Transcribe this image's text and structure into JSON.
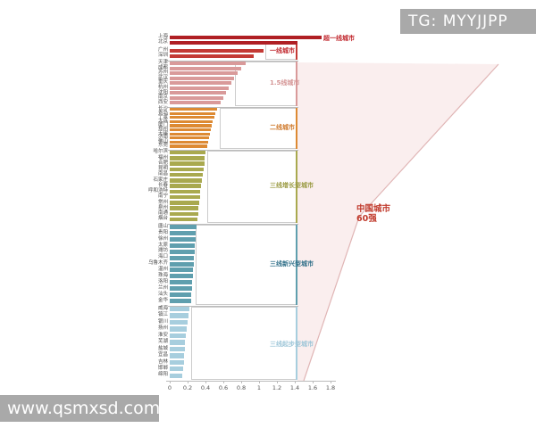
{
  "watermarks": {
    "top_right": "TG: MYYJJPP",
    "bottom_left": "www.qsmxsd.com"
  },
  "annotation": {
    "line1": "中国城市",
    "line2": "60强",
    "color": "#c0392b"
  },
  "chart_data": {
    "type": "bar",
    "orientation": "horizontal",
    "title": "中国城市60强",
    "xlabel": "",
    "ylabel": "",
    "xlim": [
      0,
      1.8
    ],
    "x_ticks": [
      "0",
      "0.2",
      "0.4",
      "0.6",
      "0.8",
      "1",
      "1.2",
      "1.4",
      "1.6",
      "1.8"
    ],
    "grid": false,
    "legend_position": "none",
    "tiers": [
      {
        "label": "超一线城市",
        "color": "#b01f24",
        "label_color": "#c0262c",
        "cities": [
          {
            "name": "上海",
            "value": 1.7
          },
          {
            "name": "北京",
            "value": 1.43
          }
        ]
      },
      {
        "label": "一线城市",
        "color": "#c43a35",
        "label_color": "#c0262c",
        "cities": [
          {
            "name": "广州",
            "value": 1.05
          },
          {
            "name": "深圳",
            "value": 0.94
          }
        ]
      },
      {
        "label": "1.5线城市",
        "color": "#d99a9a",
        "label_color": "#d49494",
        "cities": [
          {
            "name": "天津",
            "value": 0.85
          },
          {
            "name": "成都",
            "value": 0.8
          },
          {
            "name": "苏州",
            "value": 0.76
          },
          {
            "name": "武汉",
            "value": 0.72
          },
          {
            "name": "重庆",
            "value": 0.69
          },
          {
            "name": "杭州",
            "value": 0.66
          },
          {
            "name": "沈阳",
            "value": 0.63
          },
          {
            "name": "南京",
            "value": 0.6
          },
          {
            "name": "西安",
            "value": 0.57
          }
        ]
      },
      {
        "label": "二线城市",
        "color": "#dd8a33",
        "label_color": "#cf7a2d",
        "cities": [
          {
            "name": "长沙",
            "value": 0.53
          },
          {
            "name": "青岛",
            "value": 0.51
          },
          {
            "name": "宁波",
            "value": 0.5
          },
          {
            "name": "大连",
            "value": 0.48
          },
          {
            "name": "厦门",
            "value": 0.47
          },
          {
            "name": "郑州",
            "value": 0.46
          },
          {
            "name": "无锡",
            "value": 0.45
          },
          {
            "name": "济南",
            "value": 0.44
          },
          {
            "name": "佛山",
            "value": 0.43
          },
          {
            "name": "东莞",
            "value": 0.42
          }
        ]
      },
      {
        "label": "三线增长型城市",
        "color": "#a9a94f",
        "label_color": "#9a9a42",
        "cities": [
          {
            "name": "哈尔滨",
            "value": 0.4
          },
          {
            "name": "福州",
            "value": 0.39
          },
          {
            "name": "合肥",
            "value": 0.385
          },
          {
            "name": "昆明",
            "value": 0.38
          },
          {
            "name": "南昌",
            "value": 0.37
          },
          {
            "name": "石家庄",
            "value": 0.36
          },
          {
            "name": "长春",
            "value": 0.35
          },
          {
            "name": "呼和浩特",
            "value": 0.34
          },
          {
            "name": "南宁",
            "value": 0.335
          },
          {
            "name": "常州",
            "value": 0.33
          },
          {
            "name": "泉州",
            "value": 0.32
          },
          {
            "name": "南通",
            "value": 0.315
          },
          {
            "name": "烟台",
            "value": 0.31
          }
        ]
      },
      {
        "label": "三线新兴型城市",
        "color": "#5f9fae",
        "label_color": "#2f6f88",
        "cities": [
          {
            "name": "唐山",
            "value": 0.3
          },
          {
            "name": "贵阳",
            "value": 0.29
          },
          {
            "name": "徐州",
            "value": 0.285
          },
          {
            "name": "太原",
            "value": 0.28
          },
          {
            "name": "潍坊",
            "value": 0.275
          },
          {
            "name": "海口",
            "value": 0.27
          },
          {
            "name": "乌鲁木齐",
            "value": 0.265
          },
          {
            "name": "温州",
            "value": 0.26
          },
          {
            "name": "珠海",
            "value": 0.255
          },
          {
            "name": "洛阳",
            "value": 0.25
          },
          {
            "name": "兰州",
            "value": 0.245
          },
          {
            "name": "汕头",
            "value": 0.24
          },
          {
            "name": "金华",
            "value": 0.235
          }
        ]
      },
      {
        "label": "三线起步型城市",
        "color": "#a7cede",
        "label_color": "#9ec6d8",
        "cities": [
          {
            "name": "威海",
            "value": 0.22
          },
          {
            "name": "镇江",
            "value": 0.21
          },
          {
            "name": "银川",
            "value": 0.2
          },
          {
            "name": "扬州",
            "value": 0.19
          },
          {
            "name": "淮安",
            "value": 0.18
          },
          {
            "name": "芜湖",
            "value": 0.17
          },
          {
            "name": "盐城",
            "value": 0.165
          },
          {
            "name": "宜昌",
            "value": 0.16
          },
          {
            "name": "吉林",
            "value": 0.155
          },
          {
            "name": "邯郸",
            "value": 0.15
          },
          {
            "name": "绵阳",
            "value": 0.14
          }
        ]
      }
    ]
  }
}
